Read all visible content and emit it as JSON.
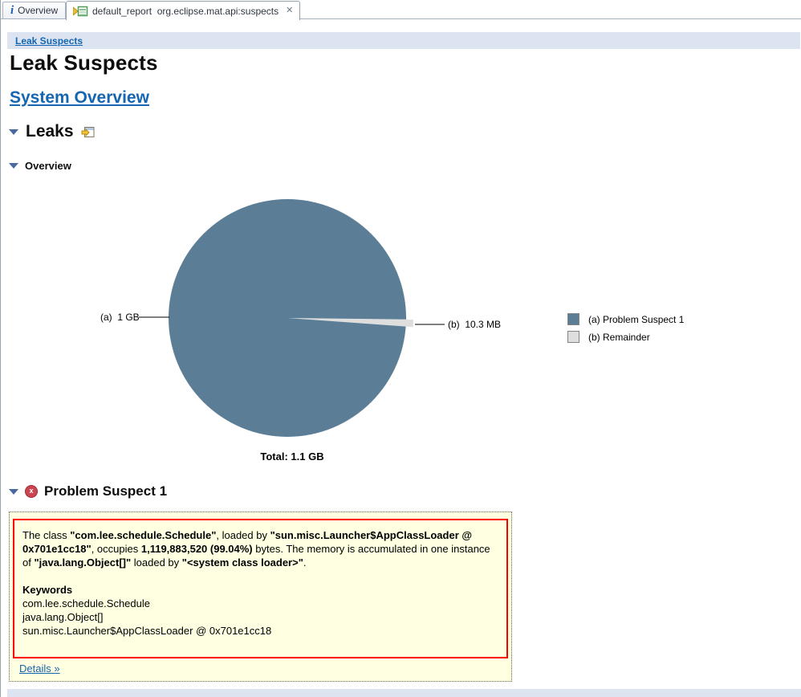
{
  "tabs": [
    {
      "label": "Overview",
      "icon": "info-icon",
      "active": false
    },
    {
      "label": "default_report  org.eclipse.mat.api:suspects",
      "icon": "report-icon",
      "active": true,
      "close_glyph": "✕"
    }
  ],
  "breadcrumb": {
    "label": "Leak Suspects"
  },
  "page": {
    "title": "Leak Suspects",
    "system_overview_link": "System Overview",
    "leaks_heading": "Leaks",
    "overview_heading": "Overview",
    "problem_suspect_heading": "Problem Suspect 1",
    "error_glyph": "x",
    "details_link": "Details »"
  },
  "chart_data": {
    "type": "pie",
    "slices": [
      {
        "key": "a",
        "label": "(a) Problem Suspect 1",
        "callout": "(a)  1 GB",
        "value_bytes": 1119883520,
        "percent": 99.04,
        "color": "#5b7e96"
      },
      {
        "key": "b",
        "label": "(b) Remainder",
        "callout": "(b)  10.3 MB",
        "value_bytes": 10800000,
        "percent": 0.96,
        "color": "#dedede"
      }
    ],
    "total_label": "Total: 1.1 GB",
    "legend_position": "right"
  },
  "suspect_box": {
    "paragraph_segments": [
      {
        "text": "The class ",
        "bold": false
      },
      {
        "text": "\"com.lee.schedule.Schedule\"",
        "bold": true
      },
      {
        "text": ", loaded by ",
        "bold": false
      },
      {
        "text": "\"sun.misc.Launcher$AppClassLoader @ 0x701e1cc18\"",
        "bold": true
      },
      {
        "text": ", occupies ",
        "bold": false
      },
      {
        "text": "1,119,883,520 (99.04%)",
        "bold": true
      },
      {
        "text": " bytes. The memory is accumulated in one instance of ",
        "bold": false
      },
      {
        "text": "\"java.lang.Object[]\"",
        "bold": true
      },
      {
        "text": " loaded by ",
        "bold": false
      },
      {
        "text": "\"<system class loader>\"",
        "bold": true
      },
      {
        "text": ".",
        "bold": false
      }
    ],
    "keywords_heading": "Keywords",
    "keywords": [
      "com.lee.schedule.Schedule",
      "java.lang.Object[]",
      "sun.misc.Launcher$AppClassLoader @ 0x701e1cc18"
    ]
  }
}
